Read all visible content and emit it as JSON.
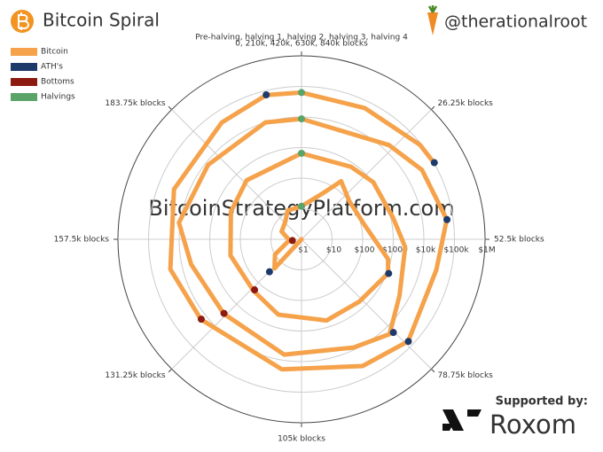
{
  "page": {
    "handle": "@therationalroot",
    "watermark": "BitcoinStrategyPlatform.com",
    "supported_by": "Supported by:",
    "sponsor": "Roxom"
  },
  "chart_data": {
    "type": "spiral",
    "title": "Bitcoin Spiral",
    "angle_title": "Pre-halving, halving 1, halving 2, halving 3, halving 4",
    "angle_period": 210000,
    "angle_ticks": [
      {
        "value": 0,
        "label": "0, 210k, 420k, 630k, 840k blocks"
      },
      {
        "value": 26250,
        "label": "26.25k blocks"
      },
      {
        "value": 52500,
        "label": "52.5k blocks"
      },
      {
        "value": 78750,
        "label": "78.75k blocks"
      },
      {
        "value": 105000,
        "label": "105k blocks"
      },
      {
        "value": 131250,
        "label": "131.25k blocks"
      },
      {
        "value": 157500,
        "label": "157.5k blocks"
      },
      {
        "value": 183750,
        "label": "183.75k blocks"
      }
    ],
    "rlim": [
      1,
      1000000
    ],
    "log_r": true,
    "rticks": [
      {
        "value": 1,
        "label": "$1"
      },
      {
        "value": 10,
        "label": "$10"
      },
      {
        "value": 100,
        "label": "$100"
      },
      {
        "value": 1000,
        "label": "$1000"
      },
      {
        "value": 10000,
        "label": "$10k"
      },
      {
        "value": 100000,
        "label": "$100k"
      },
      {
        "value": 1000000,
        "label": "$1M"
      }
    ],
    "legend": "top-left",
    "series": [
      {
        "name": "Bitcoin",
        "color": "#f5a24b",
        "style": "line",
        "x": [
          110000,
          130000,
          140000,
          155000,
          170000,
          185000,
          195000,
          210000,
          225000,
          230000,
          240000,
          255000,
          270000,
          275000,
          290000,
          305000,
          325000,
          340000,
          360000,
          380000,
          395000,
          420000,
          440000,
          450000,
          465000,
          475000,
          490000,
          500000,
          510000,
          530000,
          552000,
          570000,
          582000,
          600000,
          620000,
          630000,
          655000,
          665000,
          678000,
          690000,
          708000,
          720000,
          740000,
          765000,
          780000,
          800000,
          820000,
          832000,
          840000,
          855000,
          870000,
          875000
        ],
        "values": [
          1,
          20,
          10,
          2.5,
          5,
          6,
          11,
          12,
          50,
          200,
          100,
          130,
          800,
          1100,
          600,
          600,
          380,
          200,
          240,
          300,
          430,
          650,
          740,
          1000,
          1200,
          2500,
          5000,
          17000,
          8500,
          6500,
          3300,
          5000,
          11000,
          8000,
          10000,
          8700,
          16000,
          35000,
          62000,
          33000,
          67000,
          40000,
          20000,
          16000,
          25000,
          30000,
          42000,
          72000,
          63000,
          58000,
          90000,
          100000
        ]
      },
      {
        "name": "ATH's",
        "color": "#1d3a6b",
        "style": "points",
        "x": [
          131000,
          275000,
          499000,
          678000,
          708000,
          832000,
          875000
        ],
        "values": [
          31,
          1150,
          19000,
          63000,
          68000,
          73000,
          103000
        ]
      },
      {
        "name": "Bottoms",
        "color": "#8b1a10",
        "style": "points",
        "x": [
          153000,
          340000,
          552000,
          765000
        ],
        "values": [
          2,
          180,
          3200,
          15500
        ]
      },
      {
        "name": "Halvings",
        "color": "#5aa469",
        "style": "points",
        "x": [
          210000,
          420000,
          630000,
          840000
        ],
        "values": [
          12,
          650,
          8700,
          63000
        ]
      }
    ]
  }
}
